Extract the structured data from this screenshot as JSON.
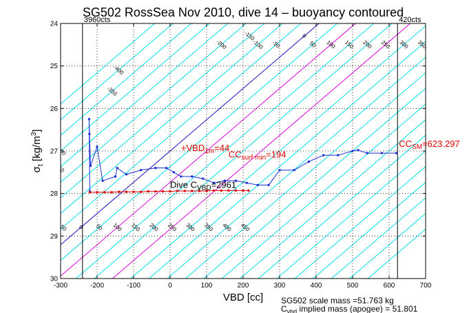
{
  "chart_data": {
    "type": "line",
    "title": "SG502 RossSea Nov 2010, dive 14 – buoyancy contoured",
    "xlabel": "VBD [cc]",
    "ylabel_main": "σ",
    "ylabel_sub": "t",
    "ylabel_unit_pre": " [kg/m",
    "ylabel_unit_sup": "3",
    "ylabel_unit_post": "]",
    "xlim": [
      -300,
      700
    ],
    "ylim": [
      24,
      30
    ],
    "y_reversed": true,
    "grid": "dotted",
    "xticks": [
      -300,
      -200,
      -100,
      0,
      100,
      200,
      300,
      400,
      500,
      600,
      700
    ],
    "yticks": [
      24,
      25,
      26,
      27,
      28,
      29,
      30
    ],
    "contours": {
      "slope_vbd_per_sigma": 136,
      "ref_sigma": 27,
      "cyan_levels": [
        -450,
        -400,
        -350,
        -300,
        -250,
        -200,
        -150,
        -100,
        -50,
        0,
        50,
        100,
        150,
        200,
        250,
        300,
        350,
        400,
        450,
        500,
        550,
        600,
        650,
        700,
        750,
        800,
        850,
        900,
        950
      ],
      "zero_level": 0,
      "magenta_levels": [
        100,
        250
      ],
      "colors": {
        "cyan": "#00e0e8",
        "zero": "#1010c0",
        "magenta": "#dd00dd"
      },
      "labels": [
        {
          "text": "-400",
          "level": -400,
          "sigma": 25.1
        },
        {
          "text": "-350",
          "level": -350,
          "sigma": 25.6
        },
        {
          "text": "-300",
          "level": -300,
          "sigma": 27.0
        },
        {
          "text": "-250",
          "level": -250,
          "sigma": 27.4
        },
        {
          "text": "-200",
          "level": -200,
          "sigma": 29.3
        },
        {
          "text": "-150",
          "level": -150,
          "sigma": 28.8
        },
        {
          "text": "-100",
          "level": -100,
          "sigma": 28.7
        },
        {
          "text": "-50",
          "level": -50,
          "sigma": 28.8
        },
        {
          "text": "0",
          "level": 0,
          "sigma": 28.8
        },
        {
          "text": "50",
          "level": 50,
          "sigma": 28.8
        },
        {
          "text": "100",
          "level": 100,
          "sigma": 28.8
        },
        {
          "text": "150",
          "level": 150,
          "sigma": 28.8
        },
        {
          "text": "200",
          "level": 200,
          "sigma": 28.8
        },
        {
          "text": "250",
          "level": 250,
          "sigma": 28.8
        },
        {
          "text": "300",
          "level": 300,
          "sigma": 28.8
        },
        {
          "text": "350",
          "level": 350,
          "sigma": 28.8
        },
        {
          "text": "400",
          "level": 400,
          "sigma": 28.8
        },
        {
          "text": "450",
          "level": 450,
          "sigma": 28.8
        },
        {
          "text": "-200",
          "level": -200,
          "sigma": 24.5
        },
        {
          "text": "-150",
          "level": -150,
          "sigma": 24.3
        },
        {
          "text": "-100",
          "level": -100,
          "sigma": 24.5
        },
        {
          "text": "-50",
          "level": -50,
          "sigma": 24.5
        },
        {
          "text": "0",
          "level": 0,
          "sigma": 24.3
        },
        {
          "text": "50",
          "level": 50,
          "sigma": 24.5
        },
        {
          "text": "100",
          "level": 100,
          "sigma": 24.5
        },
        {
          "text": "150",
          "level": 150,
          "sigma": 24.5
        },
        {
          "text": "200",
          "level": 200,
          "sigma": 24.5
        },
        {
          "text": "250",
          "level": 250,
          "sigma": 24.5
        },
        {
          "text": "300",
          "level": 300,
          "sigma": 24.5
        },
        {
          "text": "350",
          "level": 350,
          "sigma": 24.5
        },
        {
          "text": "400",
          "level": 400,
          "sigma": 24.5
        },
        {
          "text": "450",
          "level": 450,
          "sigma": 24.5
        },
        {
          "text": "500",
          "level": 500,
          "sigma": 24.4
        }
      ]
    },
    "vlines": [
      {
        "x": -240,
        "label": "3960cts"
      },
      {
        "x": 623,
        "label": "420cts"
      }
    ],
    "series": [
      {
        "color": "#1a2fd0",
        "x": [
          -220,
          -222,
          -221,
          -218,
          -200,
          -185,
          -150,
          -145,
          -120,
          -80,
          -40,
          -10,
          10,
          30,
          60,
          90,
          120,
          150,
          180,
          210,
          240,
          270,
          300,
          340,
          380,
          420,
          460,
          500,
          515,
          540,
          580,
          620
        ],
        "y": [
          27.95,
          26.25,
          26.6,
          27.35,
          26.9,
          27.7,
          27.6,
          27.4,
          27.55,
          27.45,
          27.4,
          27.4,
          27.5,
          27.6,
          27.6,
          27.65,
          27.75,
          27.7,
          27.7,
          27.75,
          27.8,
          27.8,
          27.45,
          27.45,
          27.25,
          27.1,
          27.1,
          27.0,
          26.98,
          27.05,
          27.05,
          27.05
        ]
      },
      {
        "color": "#dd0000",
        "x": [
          -220,
          -200,
          -180,
          -160,
          -140,
          -120,
          -100,
          -80,
          -60,
          -40,
          -20,
          0,
          20,
          40,
          60,
          80,
          100,
          120,
          140,
          160,
          180,
          200,
          215
        ],
        "y": [
          27.97,
          27.97,
          27.97,
          27.97,
          27.96,
          27.96,
          27.96,
          27.96,
          27.95,
          27.95,
          27.95,
          27.95,
          27.94,
          27.94,
          27.94,
          27.94,
          27.94,
          27.93,
          27.93,
          27.93,
          27.93,
          27.93,
          27.93
        ]
      }
    ],
    "annotations": [
      {
        "marker": "+",
        "main": "VBD",
        "sub": "1m",
        "post": "=44",
        "x": 30,
        "sigma": 27.0,
        "color": "#dd0000"
      },
      {
        "marker": "",
        "main": "CC",
        "sub": "surf min",
        "post": "=194",
        "x": 160,
        "sigma": 27.15,
        "color": "#dd0000"
      },
      {
        "marker": "",
        "main": "CC",
        "sub": "SM",
        "post": "=623.297",
        "x": 627,
        "sigma": 26.9,
        "color": "#dd0000"
      },
      {
        "marker": "",
        "main": "Dive C",
        "sub": "VBD",
        "post": "=2961",
        "x": 0,
        "sigma": 27.87,
        "color": "#000000"
      }
    ],
    "footer": {
      "line1": "SG502 scale mass =51.763 kg",
      "line2_main": "C",
      "line2_sub": "vbd",
      "line2_post": " implied mass (apogee) = 51.801"
    }
  }
}
